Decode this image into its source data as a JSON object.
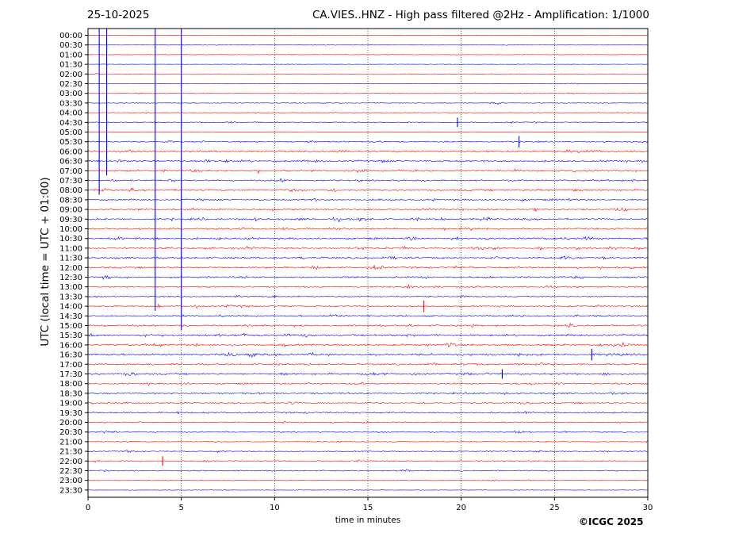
{
  "header": {
    "date": "25-10-2025",
    "title": "CA.VIES..HNZ - High pass filtered @2Hz - Amplification: 1/1000"
  },
  "footer": {
    "copyright": "©ICGC 2025"
  },
  "colors": {
    "red_trace": "#ff0000",
    "blue_trace": "#0000ff",
    "axis": "#000000",
    "grid": "#000000"
  },
  "chart_data": {
    "type": "line",
    "title": "CA.VIES..HNZ - High pass filtered @2Hz - Amplification: 1/1000",
    "xlabel": "time in minutes",
    "ylabel": "UTC (local time = UTC + 01:00)",
    "xlim": [
      0,
      30
    ],
    "x_ticks": [
      0,
      5,
      10,
      15,
      20,
      25,
      30
    ],
    "grid": "vertical dotted lines at 5-minute intervals",
    "row_labels": [
      "00:00",
      "00:30",
      "01:00",
      "01:30",
      "02:00",
      "02:30",
      "03:00",
      "03:30",
      "04:00",
      "04:30",
      "05:00",
      "05:30",
      "06:00",
      "06:30",
      "07:00",
      "07:30",
      "08:00",
      "08:30",
      "09:00",
      "09:30",
      "10:00",
      "10:30",
      "11:00",
      "11:30",
      "12:00",
      "12:30",
      "13:00",
      "13:30",
      "14:00",
      "14:30",
      "15:00",
      "15:30",
      "16:00",
      "16:30",
      "17:00",
      "17:30",
      "18:00",
      "18:30",
      "19:00",
      "19:30",
      "20:00",
      "20:30",
      "21:00",
      "21:30",
      "22:00",
      "22:30",
      "23:00",
      "23:30"
    ],
    "row_colors": "alternating red (on the hour) and blue (half hour)",
    "row_activity": [
      0.05,
      0.06,
      0.05,
      0.05,
      0.05,
      0.05,
      0.15,
      0.2,
      0.12,
      0.3,
      0.05,
      0.4,
      0.55,
      0.6,
      0.55,
      0.5,
      0.55,
      0.5,
      0.55,
      0.6,
      0.55,
      0.6,
      0.6,
      0.6,
      0.6,
      0.55,
      0.45,
      0.4,
      0.5,
      0.5,
      0.55,
      0.65,
      0.6,
      0.7,
      0.55,
      0.6,
      0.5,
      0.5,
      0.45,
      0.45,
      0.35,
      0.35,
      0.25,
      0.3,
      0.35,
      0.3,
      0.15,
      0.08
    ],
    "events": [
      {
        "row": 5,
        "minute": 0.6,
        "amp": 1.0
      },
      {
        "row": 3,
        "minute": 1.0,
        "amp": 1.0
      },
      {
        "row": 17,
        "minute": 3.6,
        "amp": 1.0
      },
      {
        "row": 19,
        "minute": 5.0,
        "amp": 1.0
      },
      {
        "row": 9,
        "minute": 19.8,
        "amp": 0.5
      },
      {
        "row": 11,
        "minute": 23.1,
        "amp": 0.6
      },
      {
        "row": 28,
        "minute": 18.0,
        "amp": 0.6
      },
      {
        "row": 33,
        "minute": 27.0,
        "amp": 0.6
      },
      {
        "row": 35,
        "minute": 22.2,
        "amp": 0.5
      },
      {
        "row": 44,
        "minute": 4.0,
        "amp": 0.5
      }
    ]
  }
}
